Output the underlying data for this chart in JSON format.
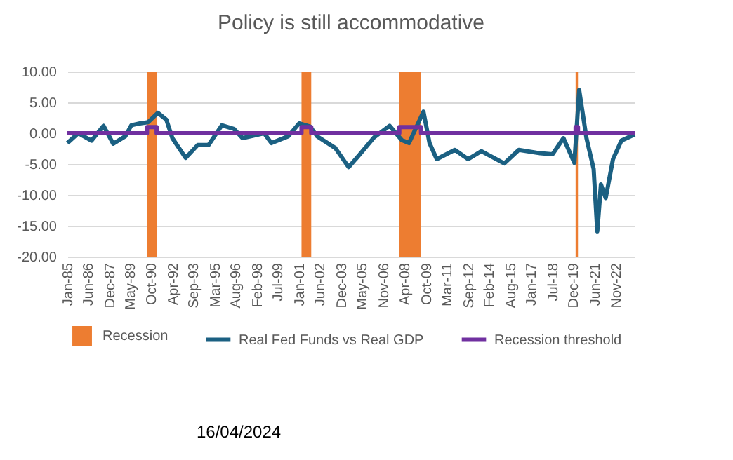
{
  "chart_data": {
    "type": "line",
    "title": "Policy is still accommodative",
    "x": [
      "1985-01",
      "1985-10",
      "1986-09",
      "1987-07",
      "1988-03",
      "1989-01",
      "1989-06",
      "1990-01",
      "1990-08",
      "1991-04",
      "1991-11",
      "1992-04",
      "1993-03",
      "1994-01",
      "1994-10",
      "1995-09",
      "1996-07",
      "1997-02",
      "1998-08",
      "1999-02",
      "2000-04",
      "2001-01",
      "2001-10",
      "2002-04",
      "2003-07",
      "2004-06",
      "2005-03",
      "2006-03",
      "2007-04",
      "2008-02",
      "2008-08",
      "2009-08",
      "2010-01",
      "2010-07",
      "2011-10",
      "2012-09",
      "2013-08",
      "2015-03",
      "2016-03",
      "2017-07",
      "2018-07",
      "2019-04",
      "2020-01",
      "2020-05",
      "2020-11",
      "2021-05",
      "2021-08",
      "2021-11",
      "2022-03",
      "2022-09",
      "2023-04",
      "2024-03"
    ],
    "series": [
      {
        "name": "Real Fed Funds vs Real GDP",
        "color": "#1b6082",
        "values": [
          -1.6,
          0,
          -1.2,
          1.2,
          -1.7,
          -0.5,
          1.3,
          1.6,
          1.8,
          3.3,
          2.2,
          -0.8,
          -4.0,
          -1.9,
          -1.9,
          1.3,
          0.7,
          -0.8,
          0,
          -1.6,
          -0.5,
          1.6,
          1.1,
          -0.5,
          -2.4,
          -5.5,
          -3.5,
          -0.7,
          1.2,
          -1.1,
          -1.6,
          3.5,
          -1.6,
          -4.2,
          -2.7,
          -4.2,
          -2.9,
          -4.9,
          -2.7,
          -3.2,
          -3.4,
          -0.8,
          -4.8,
          7.0,
          -0.8,
          -5.8,
          -15.9,
          -8.3,
          -10.5,
          -4.2,
          -1.2,
          -0.2
        ]
      },
      {
        "name": "Recession threshold",
        "type": "step",
        "color": "#7030a0",
        "x": [
          "1985-01",
          "1990-07",
          "1991-03",
          "2001-03",
          "2001-11",
          "2007-12",
          "2009-06",
          "2020-02",
          "2020-04",
          "2024-03"
        ],
        "values": [
          0,
          1,
          0,
          1,
          0,
          1,
          0,
          1,
          0,
          0
        ]
      }
    ],
    "bands": [
      {
        "axis": "x",
        "from": "1990-07",
        "to": "1991-03",
        "label": "Recession",
        "color": "#ed7d31"
      },
      {
        "axis": "x",
        "from": "2001-03",
        "to": "2001-11",
        "color": "#ed7d31"
      },
      {
        "axis": "x",
        "from": "2007-12",
        "to": "2009-06",
        "color": "#ed7d31"
      },
      {
        "axis": "x",
        "from": "2020-02",
        "to": "2020-04",
        "color": "#ed7d31"
      }
    ],
    "xlim": [
      "1985-01",
      "2024-03"
    ],
    "xticks": [
      {
        "value": "1985-01",
        "label": "Jan-85"
      },
      {
        "value": "1986-06",
        "label": "Jun-86"
      },
      {
        "value": "1987-12",
        "label": "Dec-87"
      },
      {
        "value": "1989-05",
        "label": "May-89"
      },
      {
        "value": "1990-10",
        "label": "Oct-90"
      },
      {
        "value": "1992-04",
        "label": "Apr-92"
      },
      {
        "value": "1993-09",
        "label": "Sep-93"
      },
      {
        "value": "1995-03",
        "label": "Mar-95"
      },
      {
        "value": "1996-08",
        "label": "Aug-96"
      },
      {
        "value": "1998-02",
        "label": "Feb-98"
      },
      {
        "value": "1999-07",
        "label": "Jul-99"
      },
      {
        "value": "2001-01",
        "label": "Jan-01"
      },
      {
        "value": "2002-06",
        "label": "Jun-02"
      },
      {
        "value": "2003-12",
        "label": "Dec-03"
      },
      {
        "value": "2005-05",
        "label": "May-05"
      },
      {
        "value": "2006-11",
        "label": "Nov-06"
      },
      {
        "value": "2008-04",
        "label": "Apr-08"
      },
      {
        "value": "2009-10",
        "label": "Oct-09"
      },
      {
        "value": "2011-03",
        "label": "Mar-11"
      },
      {
        "value": "2012-09",
        "label": "Sep-12"
      },
      {
        "value": "2014-02",
        "label": "Feb-14"
      },
      {
        "value": "2015-08",
        "label": "Aug-15"
      },
      {
        "value": "2017-01",
        "label": "Jan-17"
      },
      {
        "value": "2018-07",
        "label": "Jul-18"
      },
      {
        "value": "2019-12",
        "label": "Dec-19"
      },
      {
        "value": "2021-06",
        "label": "Jun-21"
      },
      {
        "value": "2022-11",
        "label": "Nov-22"
      }
    ],
    "ylim": [
      -20,
      10
    ],
    "yticks": [
      {
        "value": 10,
        "label": "10.00"
      },
      {
        "value": 5,
        "label": "5.00"
      },
      {
        "value": 0,
        "label": "0.00"
      },
      {
        "value": -5,
        "label": "-5.00"
      },
      {
        "value": -10,
        "label": "-10.00"
      },
      {
        "value": -15,
        "label": "-15.00"
      },
      {
        "value": -20,
        "label": "-20.00"
      }
    ],
    "grid": "y",
    "legend": "bottom",
    "marker": "none",
    "line_style": "solid",
    "annotations": [
      "16/04/2024"
    ]
  }
}
